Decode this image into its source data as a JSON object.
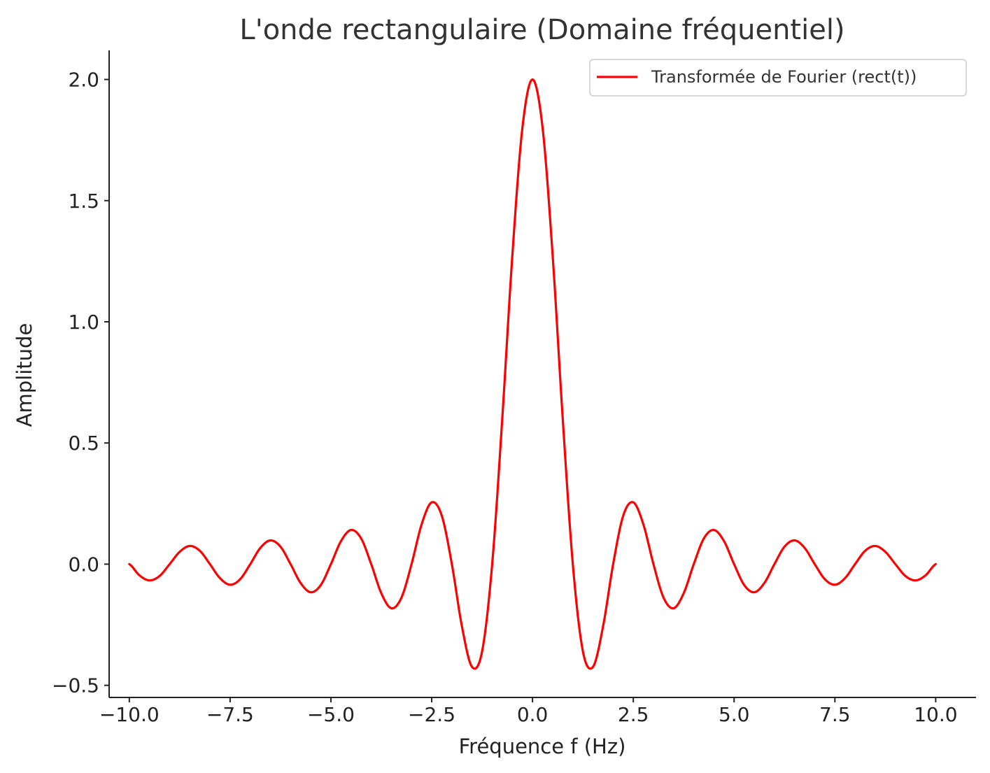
{
  "chart_data": {
    "type": "line",
    "title": "L'onde rectangulaire (Domaine fréquentiel)",
    "xlabel": "Fréquence f (Hz)",
    "ylabel": "Amplitude",
    "xlim": [
      -10.5,
      11.0
    ],
    "ylim": [
      -0.55,
      2.12
    ],
    "grid": false,
    "legend_position": "top-right",
    "x_ticks": [
      -10.0,
      -7.5,
      -5.0,
      -2.5,
      0.0,
      2.5,
      5.0,
      7.5,
      10.0
    ],
    "x_tick_labels": [
      "−10.0",
      "−7.5",
      "−5.0",
      "−2.5",
      "0.0",
      "2.5",
      "5.0",
      "7.5",
      "10.0"
    ],
    "y_ticks": [
      -0.5,
      0.0,
      0.5,
      1.0,
      1.5,
      2.0
    ],
    "y_tick_labels": [
      "−0.5",
      "0.0",
      "0.5",
      "1.0",
      "1.5",
      "2.0"
    ],
    "series": [
      {
        "name": "Transformée de Fourier (rect(t))",
        "color": "#ff0000",
        "x": [
          -10.0,
          -9.75,
          -9.5,
          -9.25,
          -9.0,
          -8.75,
          -8.5,
          -8.25,
          -8.0,
          -7.75,
          -7.5,
          -7.25,
          -7.0,
          -6.75,
          -6.5,
          -6.25,
          -6.0,
          -5.75,
          -5.5,
          -5.25,
          -5.0,
          -4.75,
          -4.5,
          -4.25,
          -4.0,
          -3.75,
          -3.5,
          -3.25,
          -3.0,
          -2.75,
          -2.5,
          -2.25,
          -2.0,
          -1.75,
          -1.5,
          -1.25,
          -1.0,
          -0.75,
          -0.5,
          -0.25,
          0.0,
          0.25,
          0.5,
          0.75,
          1.0,
          1.25,
          1.5,
          1.75,
          2.0,
          2.25,
          2.5,
          2.75,
          3.0,
          3.25,
          3.5,
          3.75,
          4.0,
          4.25,
          4.5,
          4.75,
          5.0,
          5.25,
          5.5,
          5.75,
          6.0,
          6.25,
          6.5,
          6.75,
          7.0,
          7.25,
          7.5,
          7.75,
          8.0,
          8.25,
          8.5,
          8.75,
          9.0,
          9.25,
          9.5,
          9.75,
          10.0
        ],
        "y": [
          0.0,
          -0.046,
          -0.067,
          -0.049,
          0.0,
          0.051,
          0.075,
          0.055,
          0.0,
          -0.058,
          -0.085,
          -0.062,
          0.0,
          0.067,
          0.098,
          0.072,
          0.0,
          -0.078,
          -0.116,
          -0.086,
          0.0,
          0.095,
          0.141,
          0.106,
          0.0,
          -0.12,
          -0.182,
          -0.138,
          0.0,
          0.164,
          0.255,
          0.2,
          0.0,
          -0.257,
          -0.424,
          -0.36,
          0.0,
          0.6,
          1.273,
          1.801,
          2.0,
          1.801,
          1.273,
          0.6,
          0.0,
          -0.36,
          -0.424,
          -0.257,
          0.0,
          0.2,
          0.255,
          0.164,
          0.0,
          -0.138,
          -0.182,
          -0.12,
          0.0,
          0.106,
          0.141,
          0.095,
          0.0,
          -0.086,
          -0.116,
          -0.078,
          0.0,
          0.072,
          0.098,
          0.067,
          0.0,
          -0.062,
          -0.085,
          -0.058,
          0.0,
          0.055,
          0.075,
          0.051,
          0.0,
          -0.049,
          -0.067,
          -0.046,
          0.0
        ]
      }
    ]
  }
}
